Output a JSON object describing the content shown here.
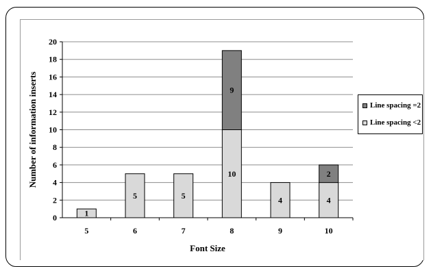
{
  "chart_data": {
    "type": "bar",
    "stacked": true,
    "categories": [
      "5",
      "6",
      "7",
      "8",
      "9",
      "10"
    ],
    "series": [
      {
        "name": "Line spacing <2",
        "values": [
          1,
          5,
          5,
          10,
          4,
          4
        ],
        "color": "#d9d9d9"
      },
      {
        "name": "Line spacing =2",
        "values": [
          0,
          0,
          0,
          9,
          0,
          2
        ],
        "color": "#808080"
      }
    ],
    "xlabel": "Font Size",
    "ylabel": "Number of information inserts",
    "ylim": [
      0,
      20
    ],
    "yticks": [
      0,
      2,
      4,
      6,
      8,
      10,
      12,
      14,
      16,
      18,
      20
    ],
    "grid": true,
    "legend_position": "right"
  }
}
